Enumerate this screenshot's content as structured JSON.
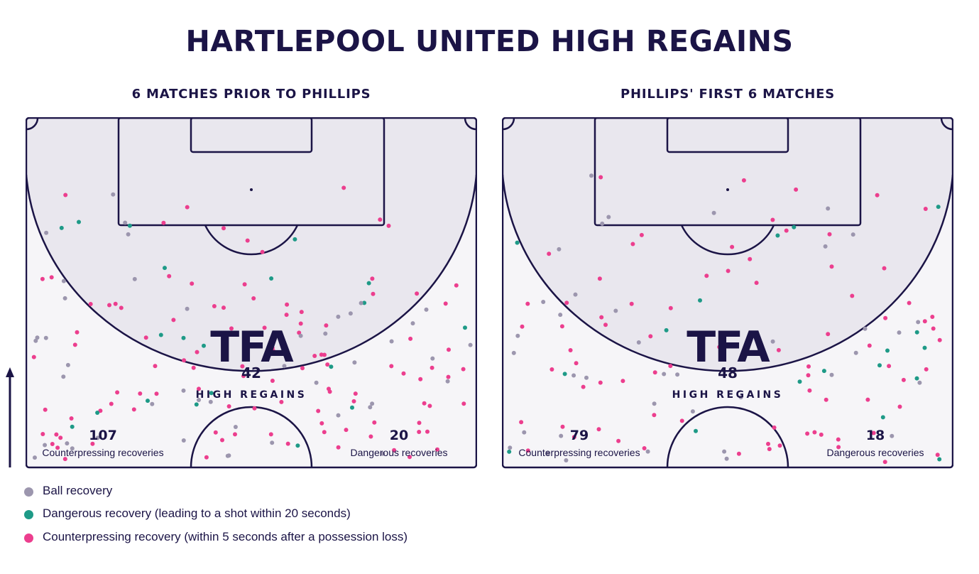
{
  "title": "HARTLEPOOL UNITED HIGH REGAINS",
  "colors": {
    "ball_recovery": "#9c96ae",
    "dangerous_recovery": "#1e9a87",
    "counterpressing_recovery": "#ec3e8e",
    "pitch_line": "#1b1446",
    "box_fill": "#e9e7ee",
    "pitch_fill": "#f6f5f8"
  },
  "legend": [
    {
      "key": "ball_recovery",
      "label": "Ball recovery"
    },
    {
      "key": "dangerous_recovery",
      "label": "Dangerous recovery (leading to a shot within 20 seconds)"
    },
    {
      "key": "counterpressing_recovery",
      "label": "Counterpressing recovery (within 5 seconds after a possession loss)"
    }
  ],
  "panels": [
    {
      "subtitle": "6 MATCHES PRIOR TO PHILLIPS",
      "logo": "TFA",
      "high_regains_value": "42",
      "high_regains_label": "HIGH REGAINS",
      "counterpressing_value": "107",
      "counterpressing_label": "Counterpressing recoveries",
      "dangerous_value": "20",
      "dangerous_label": "Dangerous recoveries"
    },
    {
      "subtitle": "PHILLIPS' FIRST 6 MATCHES",
      "logo": "TFA",
      "high_regains_value": "48",
      "high_regains_label": "HIGH REGAINS",
      "counterpressing_value": "79",
      "counterpressing_label": "Counterpressing recoveries",
      "dangerous_value": "18",
      "dangerous_label": "Dangerous recoveries"
    }
  ]
}
